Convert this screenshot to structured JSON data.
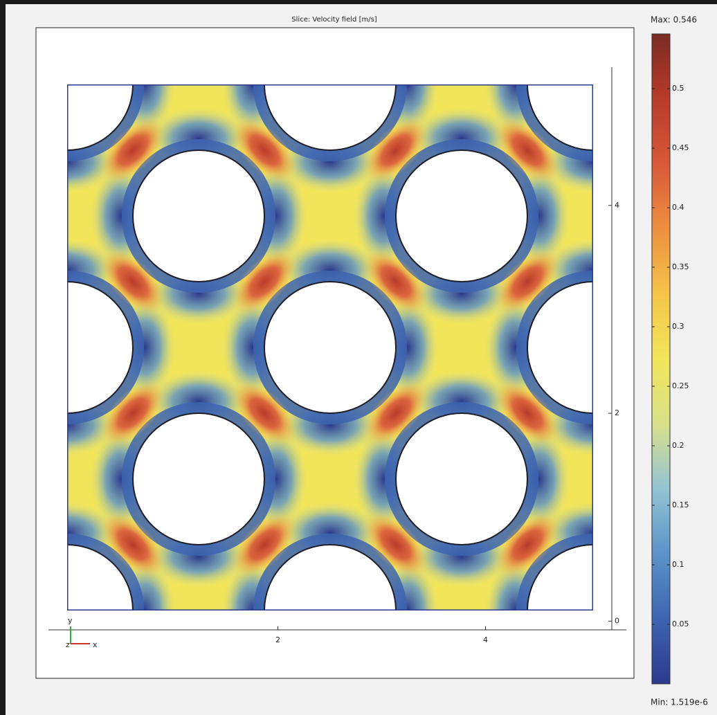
{
  "chart_data": {
    "type": "field",
    "title": "Slice: Velocity field [m/s]",
    "xlim": [
      -0.33,
      5.43
    ],
    "ylim": [
      -0.55,
      5.71
    ],
    "xticks": [
      2,
      4
    ],
    "yticks": [
      0,
      2,
      4
    ],
    "axis_triad": {
      "x": "x",
      "y": "y",
      "z": "z"
    },
    "clim": [
      1.519e-06,
      0.546
    ],
    "max_label": "Max: 0.546",
    "min_label": "Min: 1.519e-6",
    "cticks": [
      0.05,
      0.1,
      0.15,
      0.2,
      0.25,
      0.3,
      0.35,
      0.4,
      0.45,
      0.5
    ],
    "colormap": [
      "#2b3a8c",
      "#3d64b0",
      "#5b93c9",
      "#93c4d4",
      "#d8e08a",
      "#f2e55a",
      "#f5c44a",
      "#ee9040",
      "#d9583a",
      "#b83a2a",
      "#7a2b22"
    ],
    "grid": false
  }
}
